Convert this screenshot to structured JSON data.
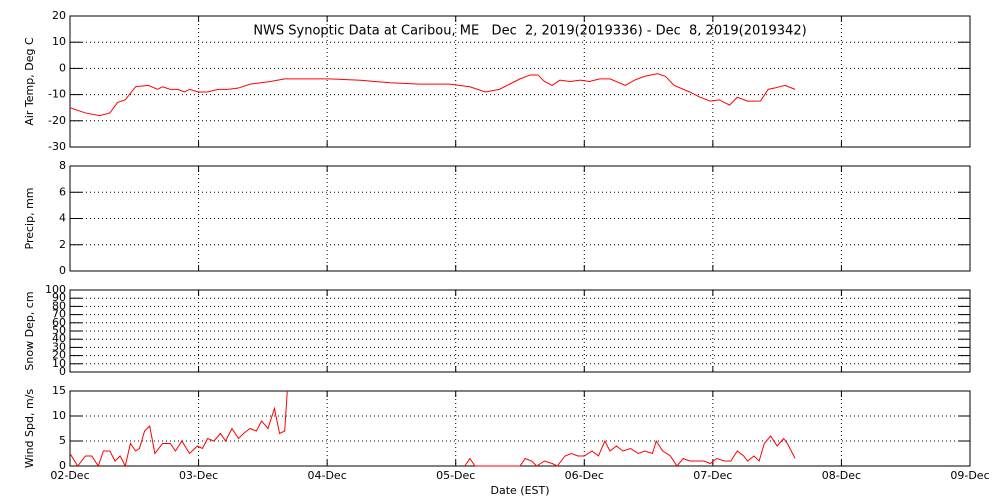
{
  "chart_data": [
    {
      "type": "line",
      "title": "NWS Synoptic Data at Caribou, ME   Dec  2, 2019(2019336) - Dec  8, 2019(2019342)",
      "ylabel": "Air Temp, Deg C",
      "xlim": [
        0,
        7
      ],
      "xticks": [
        0,
        1,
        2,
        3,
        4,
        5,
        6,
        7
      ],
      "ylim": [
        -30,
        20
      ],
      "yticks": [
        -30,
        -20,
        -10,
        0,
        10,
        20
      ],
      "grid": true,
      "x": [
        0,
        0.12,
        0.23,
        0.31,
        0.37,
        0.43,
        0.51,
        0.61,
        0.68,
        0.72,
        0.78,
        0.84,
        0.89,
        0.93,
        1.0,
        1.07,
        1.15,
        1.23,
        1.31,
        1.4,
        1.56,
        1.67,
        1.79,
        2.02,
        2.26,
        2.49,
        2.72,
        2.95,
        3.11,
        3.23,
        3.34,
        3.42,
        3.5,
        3.58,
        3.64,
        3.69,
        3.75,
        3.81,
        3.89,
        3.97,
        4.04,
        4.12,
        4.2,
        4.32,
        4.39,
        4.47,
        4.57,
        4.63,
        4.7,
        4.82,
        4.9,
        4.98,
        5.05,
        5.13,
        5.19,
        5.27,
        5.37,
        5.43,
        5.48,
        5.56,
        5.64
      ],
      "series": [
        {
          "color": "#ff0000",
          "values": [
            -15,
            -17,
            -18,
            -17,
            -13,
            -12,
            -7,
            -6.5,
            -8,
            -7,
            -8,
            -8,
            -9,
            -8,
            -9,
            -9,
            -8,
            -8,
            -7.5,
            -6,
            -5,
            -4,
            -4,
            -4,
            -4.5,
            -5.5,
            -6,
            -6,
            -7,
            -9,
            -8,
            -6,
            -4,
            -2.5,
            -2.5,
            -5,
            -6.5,
            -4.5,
            -5,
            -4.5,
            -5,
            -4,
            -4,
            -6.5,
            -4.5,
            -3,
            -2,
            -3,
            -6.5,
            -9,
            -11,
            -12.5,
            -12,
            -14,
            -11,
            -12.5,
            -12.5,
            -8,
            -7.5,
            -6.5,
            -8
          ]
        }
      ]
    },
    {
      "type": "line",
      "ylabel": "Precip, mm",
      "xlim": [
        0,
        7
      ],
      "xticks": [
        0,
        1,
        2,
        3,
        4,
        5,
        6,
        7
      ],
      "ylim": [
        0,
        8
      ],
      "yticks": [
        0,
        2,
        4,
        6,
        8
      ],
      "grid": true
    },
    {
      "type": "line",
      "ylabel": "Snow Dep, cm",
      "xlim": [
        0,
        7
      ],
      "xticks": [
        0,
        1,
        2,
        3,
        4,
        5,
        6,
        7
      ],
      "ylim": [
        0,
        100
      ],
      "yticks": [
        0,
        10,
        20,
        30,
        40,
        50,
        60,
        70,
        80,
        90,
        100
      ],
      "grid": true
    },
    {
      "type": "line",
      "ylabel": "Wind Spd, m/s",
      "xlabel": "Date (EST)",
      "xlim": [
        0,
        7
      ],
      "xticks": [
        {
          "value": 0,
          "label": "02-Dec"
        },
        {
          "value": 1,
          "label": "03-Dec"
        },
        {
          "value": 2,
          "label": "04-Dec"
        },
        {
          "value": 3,
          "label": "05-Dec"
        },
        {
          "value": 4,
          "label": "06-Dec"
        },
        {
          "value": 5,
          "label": "07-Dec"
        },
        {
          "value": 6,
          "label": "08-Dec"
        },
        {
          "value": 7,
          "label": "09-Dec"
        }
      ],
      "ylim": [
        0,
        15
      ],
      "yticks": [
        0,
        5,
        10,
        15
      ],
      "grid": true,
      "x": [
        0,
        0.06,
        0.12,
        0.17,
        0.22,
        0.26,
        0.31,
        0.35,
        0.39,
        0.43,
        0.47,
        0.51,
        0.54,
        0.58,
        0.62,
        0.66,
        0.72,
        0.78,
        0.82,
        0.87,
        0.93,
        0.99,
        1.03,
        1.07,
        1.12,
        1.17,
        1.21,
        1.26,
        1.31,
        1.35,
        1.4,
        1.45,
        1.49,
        1.54,
        1.59,
        1.63,
        1.67,
        1.69,
        2.5,
        3.07,
        3.11,
        3.15,
        3.34,
        3.5,
        3.54,
        3.59,
        3.63,
        3.69,
        3.75,
        3.79,
        3.85,
        3.9,
        3.95,
        4.0,
        4.06,
        4.11,
        4.16,
        4.2,
        4.25,
        4.3,
        4.36,
        4.42,
        4.47,
        4.53,
        4.56,
        4.61,
        4.67,
        4.72,
        4.77,
        4.82,
        4.88,
        4.93,
        4.98,
        5.03,
        5.09,
        5.14,
        5.19,
        5.24,
        5.27,
        5.32,
        5.36,
        5.4,
        5.45,
        5.5,
        5.55,
        5.58,
        5.64
      ],
      "series": [
        {
          "color": "#ff0000",
          "values": [
            2.5,
            0,
            2,
            2,
            0,
            3,
            3,
            1,
            2,
            0,
            4.5,
            3,
            3.5,
            7,
            8,
            2.5,
            4.5,
            4.5,
            3,
            5,
            2.5,
            4,
            3.5,
            5.5,
            5,
            6.5,
            5,
            7.5,
            5.5,
            6.5,
            7.5,
            7,
            9,
            7.5,
            11.5,
            6.5,
            7,
            15,
            null,
            0,
            1.5,
            0,
            0,
            0,
            1.5,
            1,
            0,
            1,
            0.5,
            0,
            2,
            2.5,
            2,
            2,
            3,
            2,
            5,
            3,
            4,
            3,
            3.5,
            2.5,
            3,
            2.5,
            5,
            3,
            2,
            0,
            1.5,
            1,
            1,
            1,
            0.5,
            1.5,
            1,
            1,
            3,
            2,
            1,
            2,
            1,
            4.5,
            6,
            4,
            5.5,
            4.5,
            1.5
          ]
        }
      ]
    }
  ]
}
